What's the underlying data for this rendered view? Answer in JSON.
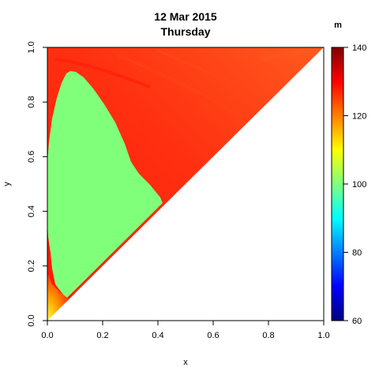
{
  "chart_data": {
    "type": "heatmap",
    "title": "12 Mar 2015",
    "subtitle": "Thursday",
    "xlabel": "x",
    "ylabel": "y",
    "xlim": [
      0,
      1
    ],
    "ylim": [
      0,
      1
    ],
    "x_ticks": [
      "0.0",
      "0.2",
      "0.4",
      "0.6",
      "0.8",
      "1.0"
    ],
    "y_ticks": [
      "0.0",
      "0.2",
      "0.4",
      "0.6",
      "0.8",
      "1.0"
    ],
    "colorbar": {
      "label": "m",
      "range": [
        60,
        140
      ],
      "ticks": [
        "60",
        "80",
        "100",
        "120",
        "140"
      ],
      "colors": [
        "#00007f",
        "#0000ff",
        "#007fff",
        "#00ffff",
        "#7fff7f",
        "#ffff00",
        "#ff7f00",
        "#ff0000",
        "#7f0000"
      ]
    },
    "regions": [
      {
        "label": "upper-triangle",
        "value": 133,
        "color": "#ff2a0a"
      },
      {
        "label": "central-lobe",
        "value": 100,
        "color": "#80ff7a"
      },
      {
        "label": "bottom-left-corner",
        "value": 120,
        "color": "#ffcc00"
      }
    ]
  }
}
